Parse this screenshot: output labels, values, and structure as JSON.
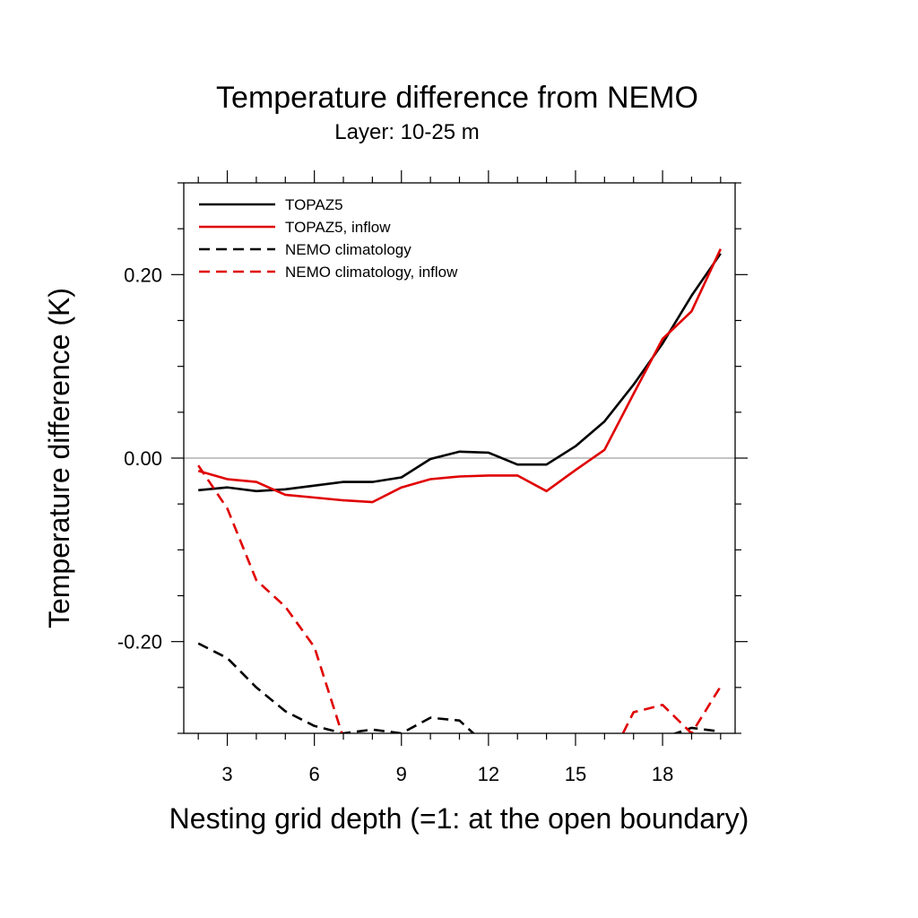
{
  "chart_data": {
    "type": "line",
    "title": "Temperature difference from NEMO",
    "subtitle": "Layer: 10-25 m",
    "xlabel": "Nesting grid depth (=1: at the open boundary)",
    "ylabel": "Temperature difference (K)",
    "xlim": [
      1.5,
      20.5
    ],
    "ylim": [
      -0.3,
      0.3
    ],
    "xticks": [
      3,
      6,
      9,
      12,
      15,
      18
    ],
    "xtick_labels": [
      "3",
      "6",
      "9",
      "12",
      "15",
      "18"
    ],
    "yticks": [
      -0.2,
      0.0,
      0.2
    ],
    "ytick_labels": [
      "-0.20",
      "0.00",
      "0.20"
    ],
    "reference_line": 0.0,
    "legend_position": "top-left",
    "x": [
      2,
      3,
      4,
      5,
      6,
      7,
      8,
      9,
      10,
      11,
      12,
      13,
      14,
      15,
      16,
      17,
      18,
      19,
      20
    ],
    "series": [
      {
        "name": "TOPAZ5",
        "color": "#000000",
        "dash": "solid",
        "values": [
          -0.035,
          -0.032,
          -0.036,
          -0.034,
          -0.03,
          -0.026,
          -0.026,
          -0.021,
          -0.001,
          0.007,
          0.006,
          -0.007,
          -0.007,
          0.013,
          0.04,
          0.08,
          0.125,
          0.177,
          0.223
        ]
      },
      {
        "name": "TOPAZ5, inflow",
        "color": "#e00000",
        "dash": "solid",
        "values": [
          -0.014,
          -0.023,
          -0.026,
          -0.04,
          -0.043,
          -0.046,
          -0.048,
          -0.032,
          -0.023,
          -0.02,
          -0.019,
          -0.019,
          -0.036,
          -0.013,
          0.009,
          0.07,
          0.13,
          0.16,
          0.228
        ]
      },
      {
        "name": "NEMO climatology",
        "color": "#000000",
        "dash": "dashed",
        "values": [
          -0.202,
          -0.218,
          -0.25,
          -0.276,
          -0.292,
          -0.3,
          -0.296,
          -0.3,
          -0.283,
          -0.286,
          -0.315,
          -0.33,
          -0.33,
          -0.33,
          -0.33,
          -0.33,
          -0.305,
          -0.294,
          -0.298
        ]
      },
      {
        "name": "NEMO climatology, inflow",
        "color": "#e00000",
        "dash": "dashed",
        "values": [
          -0.008,
          -0.055,
          -0.133,
          -0.162,
          -0.206,
          -0.305,
          -0.34,
          -0.34,
          -0.34,
          -0.34,
          -0.34,
          -0.34,
          -0.34,
          -0.34,
          -0.34,
          -0.277,
          -0.269,
          -0.3,
          -0.249
        ]
      }
    ]
  }
}
